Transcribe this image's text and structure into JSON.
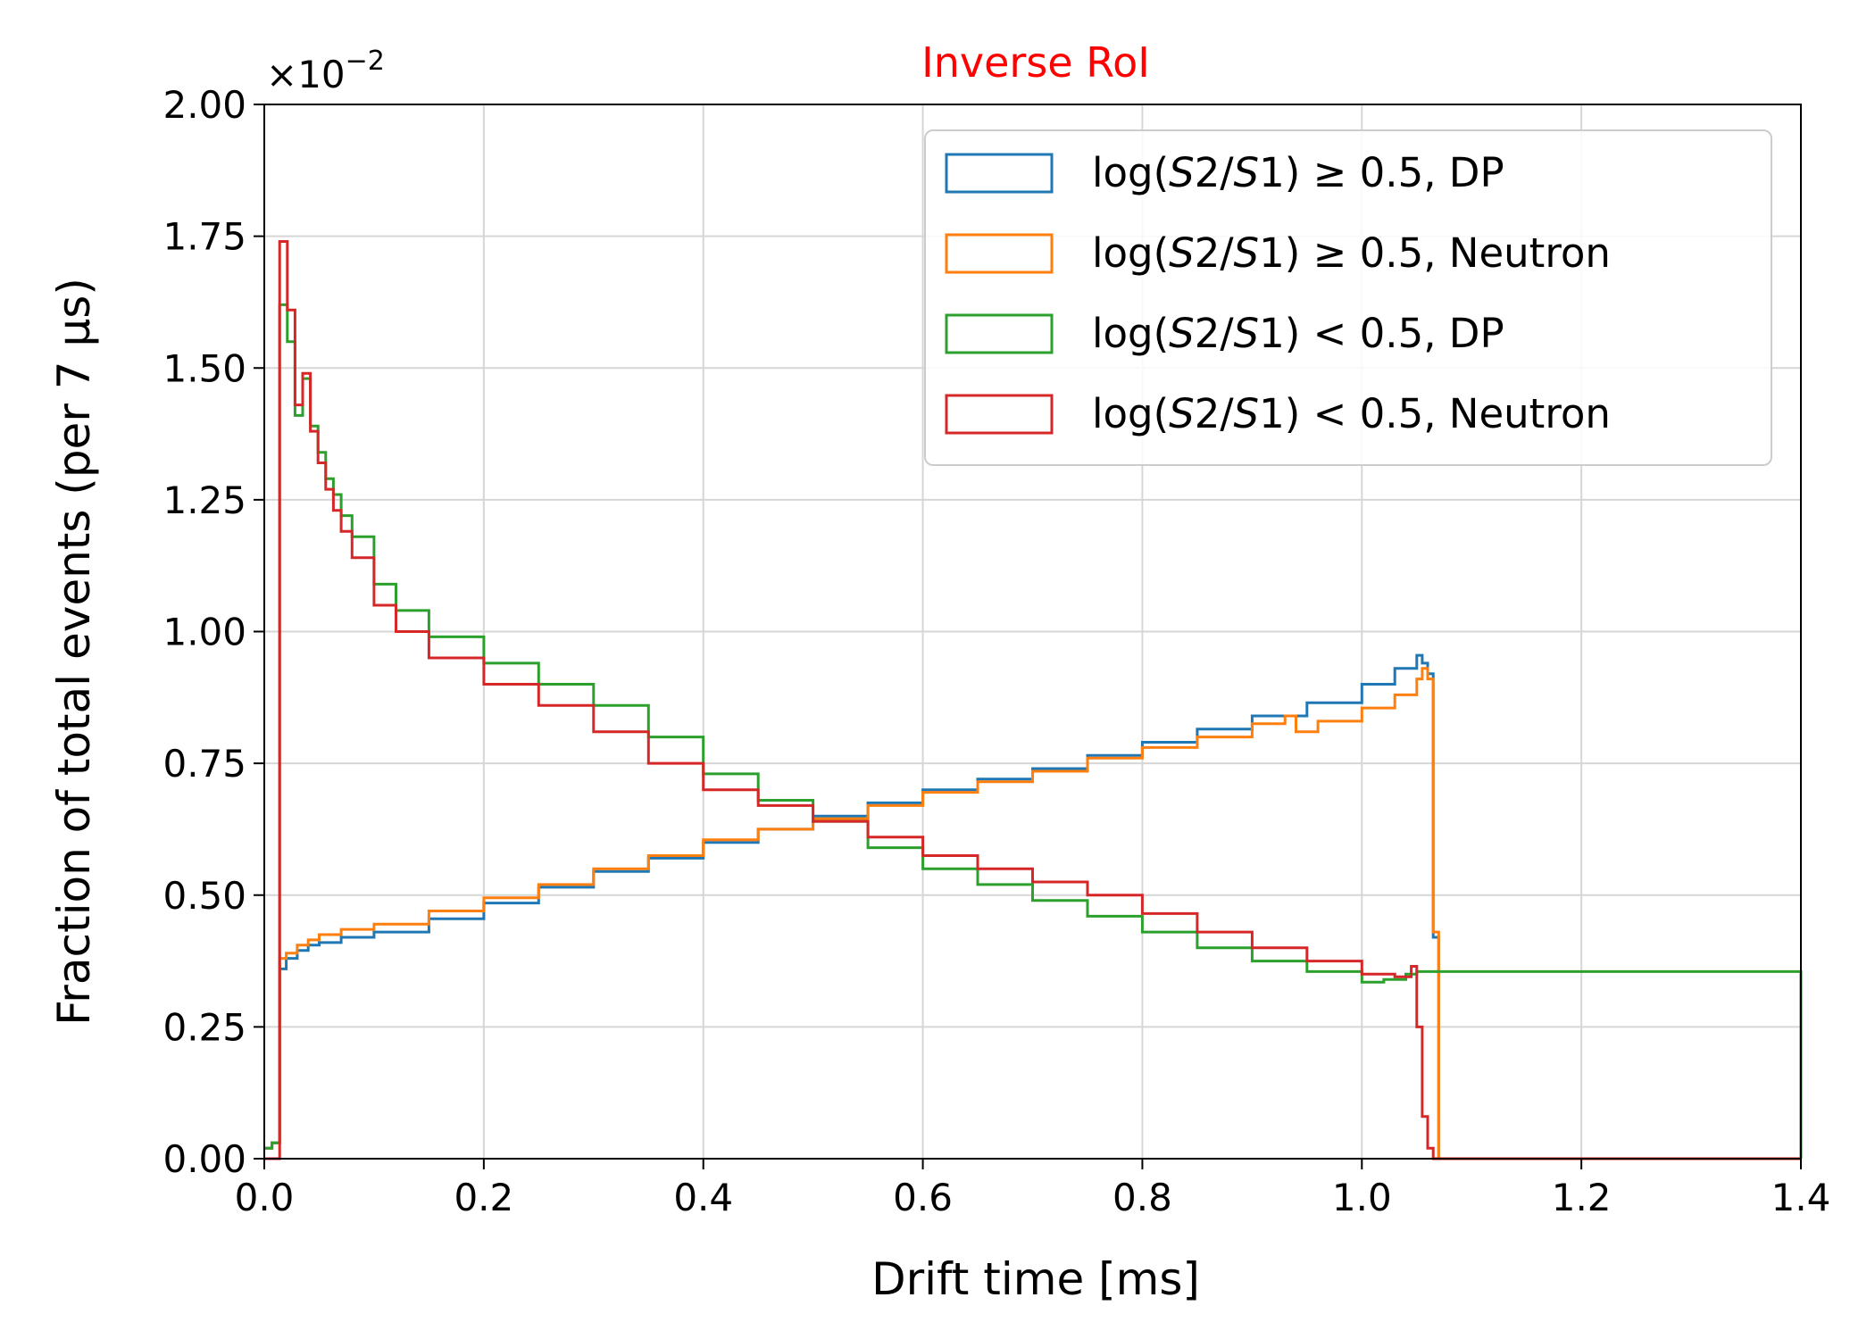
{
  "chart_data": {
    "type": "histogram-step",
    "title": "Inverse RoI",
    "title_color": "#ff0000",
    "xlabel": "Drift time [ms]",
    "ylabel": "Fraction of total events (per 7 μs)",
    "offset_label": {
      "base": "×10",
      "exponent": "−2"
    },
    "xlim": [
      0.0,
      1.4
    ],
    "ylim": [
      0.0,
      2.0
    ],
    "grid": true,
    "legend_position": "top-right",
    "xticks": [
      "0.0",
      "0.2",
      "0.4",
      "0.6",
      "0.8",
      "1.0",
      "1.2",
      "1.4"
    ],
    "yticks": [
      "0.00",
      "0.25",
      "0.50",
      "0.75",
      "1.00",
      "1.25",
      "1.50",
      "1.75",
      "2.00"
    ],
    "series": [
      {
        "name": "log(S2/S1) ≥ 0.5, DP",
        "legend": {
          "pre": "log(",
          "v1": "S",
          "n1": "2/",
          "v2": "S",
          "n2": "1) ",
          "op": "≥",
          "post": " 0.5, DP"
        },
        "color": "#1f77b4",
        "x": [
          0.0,
          0.007,
          0.014,
          0.02,
          0.03,
          0.04,
          0.05,
          0.07,
          0.1,
          0.15,
          0.2,
          0.25,
          0.3,
          0.35,
          0.4,
          0.45,
          0.5,
          0.55,
          0.6,
          0.65,
          0.7,
          0.75,
          0.8,
          0.85,
          0.9,
          0.95,
          1.0,
          1.03,
          1.05,
          1.055,
          1.06,
          1.065,
          1.07,
          1.4
        ],
        "y": [
          0.02,
          0.03,
          0.36,
          0.38,
          0.395,
          0.405,
          0.41,
          0.42,
          0.43,
          0.455,
          0.485,
          0.515,
          0.545,
          0.57,
          0.6,
          0.625,
          0.65,
          0.675,
          0.7,
          0.72,
          0.74,
          0.765,
          0.79,
          0.815,
          0.84,
          0.865,
          0.9,
          0.93,
          0.955,
          0.94,
          0.92,
          0.42,
          0.0,
          0.0
        ]
      },
      {
        "name": "log(S2/S1) ≥ 0.5, Neutron",
        "legend": {
          "pre": "log(",
          "v1": "S",
          "n1": "2/",
          "v2": "S",
          "n2": "1) ",
          "op": "≥",
          "post": " 0.5, Neutron"
        },
        "color": "#ff7f0e",
        "x": [
          0.0,
          0.007,
          0.014,
          0.02,
          0.03,
          0.04,
          0.05,
          0.07,
          0.1,
          0.15,
          0.2,
          0.25,
          0.3,
          0.35,
          0.4,
          0.45,
          0.5,
          0.55,
          0.6,
          0.65,
          0.7,
          0.75,
          0.8,
          0.85,
          0.9,
          0.93,
          0.94,
          0.96,
          1.0,
          1.03,
          1.05,
          1.055,
          1.06,
          1.065,
          1.07,
          1.4
        ],
        "y": [
          0.02,
          0.03,
          0.38,
          0.39,
          0.405,
          0.415,
          0.425,
          0.435,
          0.445,
          0.47,
          0.495,
          0.52,
          0.55,
          0.575,
          0.605,
          0.625,
          0.645,
          0.67,
          0.695,
          0.715,
          0.735,
          0.76,
          0.78,
          0.8,
          0.825,
          0.84,
          0.81,
          0.83,
          0.855,
          0.88,
          0.91,
          0.93,
          0.91,
          0.43,
          0.0,
          0.0
        ]
      },
      {
        "name": "log(S2/S1) < 0.5, DP",
        "legend": {
          "pre": "log(",
          "v1": "S",
          "n1": "2/",
          "v2": "S",
          "n2": "1) ",
          "op": "<",
          "post": " 0.5, DP"
        },
        "color": "#2ca02c",
        "x": [
          0.0,
          0.007,
          0.014,
          0.021,
          0.028,
          0.035,
          0.042,
          0.049,
          0.056,
          0.063,
          0.07,
          0.08,
          0.1,
          0.12,
          0.15,
          0.2,
          0.25,
          0.3,
          0.35,
          0.4,
          0.45,
          0.5,
          0.55,
          0.6,
          0.65,
          0.7,
          0.75,
          0.8,
          0.85,
          0.9,
          0.95,
          1.0,
          1.02,
          1.04,
          1.05,
          1.4
        ],
        "y": [
          0.02,
          0.03,
          1.62,
          1.55,
          1.41,
          1.48,
          1.39,
          1.34,
          1.29,
          1.26,
          1.22,
          1.18,
          1.09,
          1.04,
          0.99,
          0.94,
          0.9,
          0.86,
          0.8,
          0.73,
          0.68,
          0.64,
          0.59,
          0.55,
          0.52,
          0.49,
          0.46,
          0.43,
          0.4,
          0.375,
          0.355,
          0.335,
          0.34,
          0.35,
          0.355,
          0.0
        ]
      },
      {
        "name": "log(S2/S1) < 0.5, Neutron",
        "legend": {
          "pre": "log(",
          "v1": "S",
          "n1": "2/",
          "v2": "S",
          "n2": "1) ",
          "op": "<",
          "post": " 0.5, Neutron"
        },
        "color": "#d62728",
        "x": [
          0.0,
          0.007,
          0.014,
          0.021,
          0.028,
          0.035,
          0.042,
          0.049,
          0.056,
          0.063,
          0.07,
          0.08,
          0.1,
          0.12,
          0.15,
          0.2,
          0.25,
          0.3,
          0.35,
          0.4,
          0.45,
          0.5,
          0.55,
          0.6,
          0.65,
          0.7,
          0.75,
          0.8,
          0.85,
          0.9,
          0.95,
          1.0,
          1.03,
          1.045,
          1.05,
          1.055,
          1.06,
          1.065,
          1.07,
          1.4
        ],
        "y": [
          0.0,
          0.0,
          1.74,
          1.61,
          1.43,
          1.49,
          1.38,
          1.32,
          1.27,
          1.23,
          1.19,
          1.14,
          1.05,
          1.0,
          0.95,
          0.9,
          0.86,
          0.81,
          0.75,
          0.7,
          0.67,
          0.64,
          0.61,
          0.575,
          0.55,
          0.525,
          0.5,
          0.465,
          0.43,
          0.4,
          0.375,
          0.35,
          0.345,
          0.365,
          0.25,
          0.08,
          0.02,
          0.0,
          0.0,
          0.0
        ]
      }
    ]
  }
}
